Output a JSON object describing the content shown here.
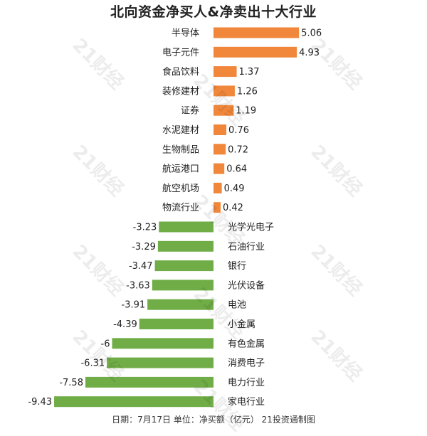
{
  "chart_data": {
    "type": "bar",
    "orientation": "horizontal",
    "title": "北向资金净买人&净卖出十大行业",
    "categories": [
      "半导体",
      "电子元件",
      "食品饮料",
      "装修建材",
      "证券",
      "水泥建材",
      "生物制品",
      "航运港口",
      "航空机场",
      "物流行业",
      "光学光电子",
      "石油行业",
      "银行",
      "光伏设备",
      "电池",
      "小金属",
      "有色金属",
      "消费电子",
      "电力行业",
      "家电行业"
    ],
    "values": [
      5.06,
      4.93,
      1.37,
      1.26,
      1.19,
      0.76,
      0.72,
      0.64,
      0.49,
      0.42,
      -3.23,
      -3.29,
      -3.47,
      -3.63,
      -3.91,
      -4.39,
      -6,
      -6.31,
      -7.58,
      -9.43
    ],
    "value_labels": [
      "5.06",
      "4.93",
      "1.37",
      "1.26",
      "1.19",
      "0.76",
      "0.72",
      "0.64",
      "0.49",
      "0.42",
      "-3.23",
      "-3.29",
      "-3.47",
      "-3.63",
      "-3.91",
      "-4.39",
      "-6",
      "-6.31",
      "-7.58",
      "-9.43"
    ],
    "positive_color": "#f0873a",
    "negative_color": "#70ad47",
    "xlim": [
      -9.43,
      5.06
    ],
    "grid": false,
    "legend": "none"
  },
  "footer": "日期：7月17日 单位：净买额（亿元） 21投资通制图",
  "watermark": "21财经"
}
